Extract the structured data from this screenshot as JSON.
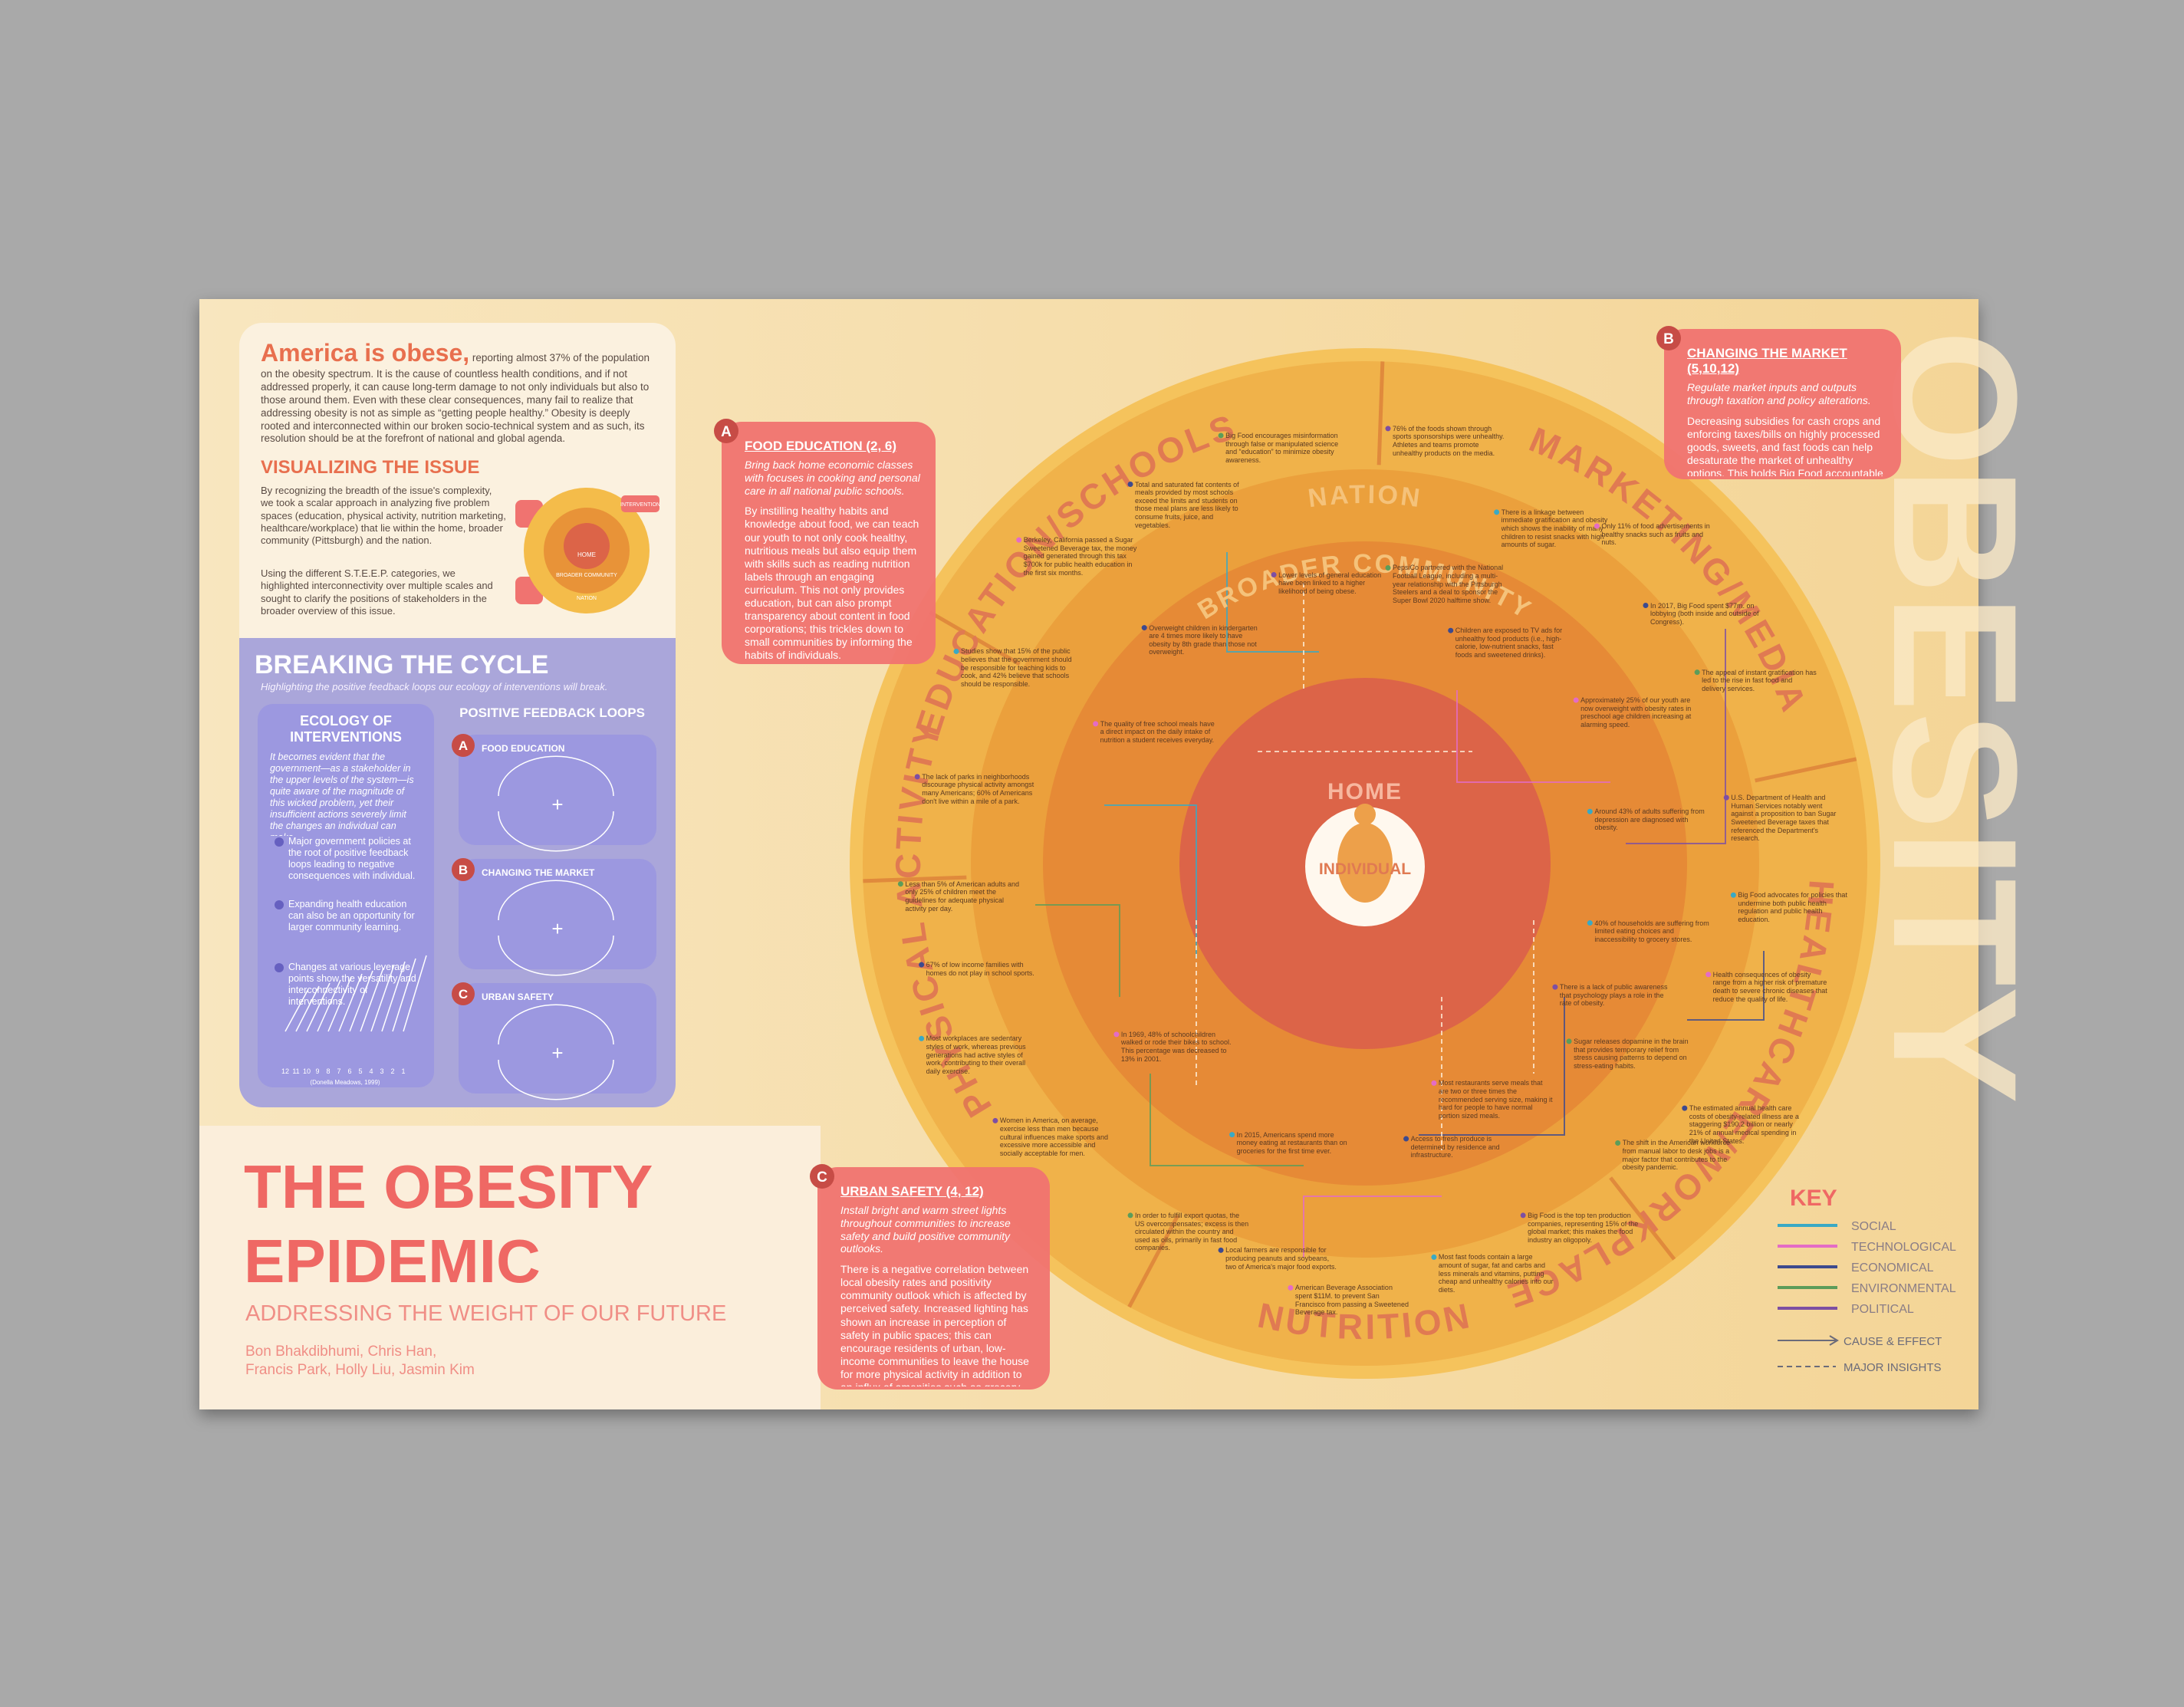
{
  "intro": {
    "lead": "America is obese,",
    "text": "reporting almost 37% of the population on the obesity spectrum. It is the cause of countless health conditions, and if not addressed properly, it can cause long-term damage to not only individuals but also to those around them. Even with these clear consequences, many fail to realize that addressing obesity is not as simple as “getting people healthy.” Obesity is deeply rooted and interconnected within our broken socio-technical system and as such, its resolution should be at the forefront of national and global agenda."
  },
  "visualizing": {
    "title": "VISUALIZING THE ISSUE",
    "text1": "By recognizing the breadth of the issue's complexity, we took a scalar approach in analyzing five problem spaces (education, physical activity, nutrition marketing, healthcare/workplace) that lie within the home, broader community (Pittsburgh) and the nation.",
    "text2": "Using the different S.T.E.E.P. categories, we highlighted interconnectivity over multiple scales and sought to clarify the positions of stakeholders in the broader overview of this issue.",
    "diagram": {
      "intervention": "INTERVENTION",
      "home": "HOME",
      "community": "BROADER COMMUNITY",
      "nation": "NATION"
    }
  },
  "breaking": {
    "title": "BREAKING THE CYCLE",
    "subtitle": "Highlighting the positive feedback loops our ecology of interventions will break.",
    "ecology_title": "ECOLOGY OF INTERVENTIONS",
    "ecology_text": "It becomes evident that the government—as a stakeholder in the upper levels of the system—is quite aware of the magnitude of this wicked problem, yet their insufficient actions severely limit the changes an individual can make.",
    "bullets": [
      "Major government policies at the root of positive feedback loops leading to negative consequences with individual.",
      "Expanding health education can also be an opportunity for larger community learning.",
      "Changes at various leverage points show the versatility and interconnectivity of interventions."
    ],
    "scale": [
      "12",
      "11",
      "10",
      "9",
      "8",
      "7",
      "6",
      "5",
      "4",
      "3",
      "2",
      "1"
    ],
    "citation": "(Donella Meadows, 1999)",
    "loops_title": "POSITIVE FEEDBACK LOOPS",
    "loops": [
      {
        "letter": "A",
        "title": "FOOD EDUCATION"
      },
      {
        "letter": "B",
        "title": "CHANGING THE MARKET"
      },
      {
        "letter": "C",
        "title": "URBAN SAFETY"
      }
    ],
    "plus": "+"
  },
  "title": {
    "line1": "THE OBESITY",
    "line2": "EPIDEMIC",
    "subtitle": "ADDRESSING THE WEIGHT OF OUR FUTURE",
    "authors1": "Bon Bhakdibhumi, Chris Han,",
    "authors2": "Francis Park, Holly Liu, Jasmin Kim"
  },
  "panels": [
    {
      "letter": "A",
      "title": "FOOD EDUCATION (2, 6)",
      "lead": "Bring back home economic classes with focuses in cooking and personal care in all national public schools.",
      "body": "By instilling healthy habits and knowledge about food, we can teach our youth to not only cook healthy, nutritious meals but also equip them with skills such as reading nutrition labels through an engaging curriculum. This not only provides education, but can also prompt transparency about content in food corporations; this trickles down to small communities by informing the habits of individuals."
    },
    {
      "letter": "B",
      "title": "CHANGING THE MARKET (5,10,12)",
      "lead": "Regulate market inputs and outputs through taxation and policy alterations.",
      "body": "Decreasing subsidies for cash crops and enforcing taxes/bills on highly processed goods, sweets, and fast foods can help desaturate the market of unhealthy options. This holds Big Food accountable and creates opportunity for the promotion of healthier products and fresh produce."
    },
    {
      "letter": "C",
      "title": "URBAN SAFETY (4, 12)",
      "lead": "Install bright and warm street lights throughout communities to increase safety and build positive community outlooks.",
      "body": "There is a negative correlation between local obesity rates and positivity community outlook which is affected by perceived safety. Increased lighting has shown an increase in perception of safety in public spaces; this can encourage residents of urban, low-income communities to leave the house for more physical activity in addition to an influx of amenities such as grocery stores."
    }
  ],
  "rings": {
    "sectors": [
      "EDUCATION/SCHOOLS",
      "MARKETING/MEDIA",
      "HEALTHCARE/WORKPLACE",
      "NUTRITION",
      "PHYSICAL ACTIVITY"
    ],
    "nation": "NATION",
    "community": "BROADER COMMUNITY",
    "home": "HOME",
    "individual": "INDIVIDUAL"
  },
  "watermark": "OBESITY",
  "notes": [
    "Studies show that 15% of the public believes that the government should be responsible for teaching kids to cook, and 42% believe that schools should be responsible.",
    "Berkeley, California passed a Sugar Sweetened Beverage tax, the money gained generated through this tax $700k for public health education in the first six months.",
    "Total and saturated fat contents of meals provided by most schools exceed the limits and students on those meal plans are less likely to consume fruits, juice, and vegetables.",
    "Big Food encourages misinformation through false or manipulated science and “education” to minimize obesity awareness.",
    "76% of the foods shown through sports sponsorships were unhealthy. Athletes and teams promote unhealthy products on the media.",
    "There is a linkage between immediate gratification and obesity which shows the inability of many children to resist snacks with high amounts of sugar.",
    "Only 11% of food advertisements in healthy snacks such as fruits and nuts.",
    "In 2017, Big Food spent $77m. on lobbying (both inside and outside of Congress).",
    "The appeal of instant gratification has led to the rise in fast food and delivery services.",
    "U.S. Department of Health and Human Services notably went against a proposition to ban Sugar Sweetened Beverage taxes that referenced the Department's research.",
    "Big Food advocates for policies that undermine both public health regulation and public health education.",
    "Health consequences of obesity range from a higher risk of premature death to severe chronic diseases that reduce the quality of life.",
    "The estimated annual health care costs of obesity-related illness are a staggering $190.2 billion or nearly 21% of annual medical spending in the United States.",
    "The shift in the American workforce from manual labor to desk jobs is a major factor that contributes to the obesity pandemic.",
    "Big Food is the top ten production companies, representing 15% of the global market; this makes the food industry an oligopoly.",
    "Most fast foods contain a large amount of sugar, fat and carbs and less minerals and vitamins, putting cheap and unhealthy calories into our diets.",
    "American Beverage Association spent $11M. to prevent San Francisco from passing a Sweetened Beverage tax.",
    "Local farmers are responsible for producing peanuts and soybeans, two of America's major food exports.",
    "In order to fulfill export quotas, the US overcompensates; excess is then circulated within the country and used as oils, primarily in fast food companies.",
    "Women in America, on average, exercise less than men because cultural influences make sports and excessive more accessible and socially acceptable for men.",
    "Most workplaces are sedentary styles of work, whereas previous generations had active styles of work, contributing to their overall daily exercise.",
    "In 1969, 48% of schoolchildren walked or rode their bikes to school. This percentage was decreased to 13% in 2001.",
    "67% of low income families with homes do not play in school sports.",
    "Less than 5% of American adults and only 25% of children meet the guidelines for adequate physical activity per day.",
    "The lack of parks in neighborhoods discourage physical activity amongst many Americans; 60% of Americans don't live within a mile of a park.",
    "Around 43% of adults suffering from depression are diagnosed with obesity.",
    "Approximately 25% of our youth are now overweight with obesity rates in preschool age children increasing at alarming speed.",
    "Children are exposed to TV ads for unhealthy food products (i.e., high-calorie, low-nutrient snacks, fast foods and sweetened drinks).",
    "PepsiCo partnered with the National Football League, including a multi-year relationship with the Pittsburgh Steelers and a deal to sponsor the Super Bowl 2020 halftime show.",
    "Lower levels of general education have been linked to a higher likelihood of being obese.",
    "In 2015, Americans spend more money eating at restaurants than on groceries for the first time ever.",
    "Most restaurants serve meals that are two or three times the recommended serving size, making it hard for people to have normal portion sized meals.",
    "Access to fresh produce is determined by residence and infrastructure.",
    "Sugar releases dopamine in the brain that provides temporary relief from stress causing patterns to depend on stress-eating habits.",
    "There is a lack of public awareness that psychology plays a role in the rate of obesity.",
    "40% of households are suffering from limited eating choices and inaccessibility to grocery stores.",
    "The quality of free school meals have a direct impact on the daily intake of nutrition a student receives everyday.",
    "Overweight children in kindergarten are 4 times more likely to have obesity by 8th grade than those not overweight."
  ],
  "key": {
    "title": "KEY",
    "items": [
      {
        "name": "SOCIAL",
        "color": "#3aa9c4"
      },
      {
        "name": "TECHNOLOGICAL",
        "color": "#e46cc6"
      },
      {
        "name": "ECONOMICAL",
        "color": "#3d4a8e"
      },
      {
        "name": "ENVIRONMENTAL",
        "color": "#5c9c5a"
      },
      {
        "name": "POLITICAL",
        "color": "#7d4fa3"
      }
    ],
    "cause": "CAUSE & EFFECT",
    "insights": "MAJOR INSIGHTS"
  }
}
